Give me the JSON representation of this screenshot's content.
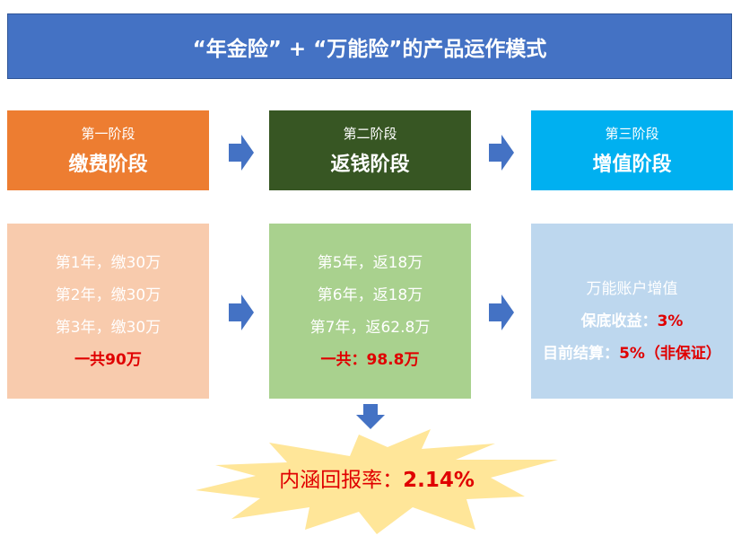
{
  "title": "“年金险” + “万能险”的产品运作模式",
  "colors": {
    "title_bg": "#4472C4",
    "stage1": "#ED7D31",
    "stage2": "#375623",
    "stage3": "#00B0F0",
    "detail1": "#F8CBAD",
    "detail2": "#A9D18E",
    "detail3": "#BDD7EE",
    "arrow": "#4472C4",
    "burst": "#FFE699",
    "highlight": "#E00000"
  },
  "stages": [
    {
      "sub": "第一阶段",
      "main": "缴费阶段"
    },
    {
      "sub": "第二阶段",
      "main": "返钱阶段"
    },
    {
      "sub": "第三阶段",
      "main": "增值阶段"
    }
  ],
  "details": {
    "pay": {
      "lines": [
        "第1年，缴30万",
        "第2年，缴30万",
        "第3年，缴30万"
      ],
      "total": "一共90万"
    },
    "return": {
      "lines": [
        "第5年，返18万",
        "第6年，返18万",
        "第7年，返62.8万"
      ],
      "total": "一共：98.8万"
    },
    "growth": {
      "line": "万能账户增值",
      "guaranteed_label": "保底收益：",
      "guaranteed_value": "3%",
      "current_label": "目前结算：",
      "current_value": "5%（非保证）"
    }
  },
  "irr": {
    "label": "内涵回报率：",
    "value": "2.14%"
  }
}
